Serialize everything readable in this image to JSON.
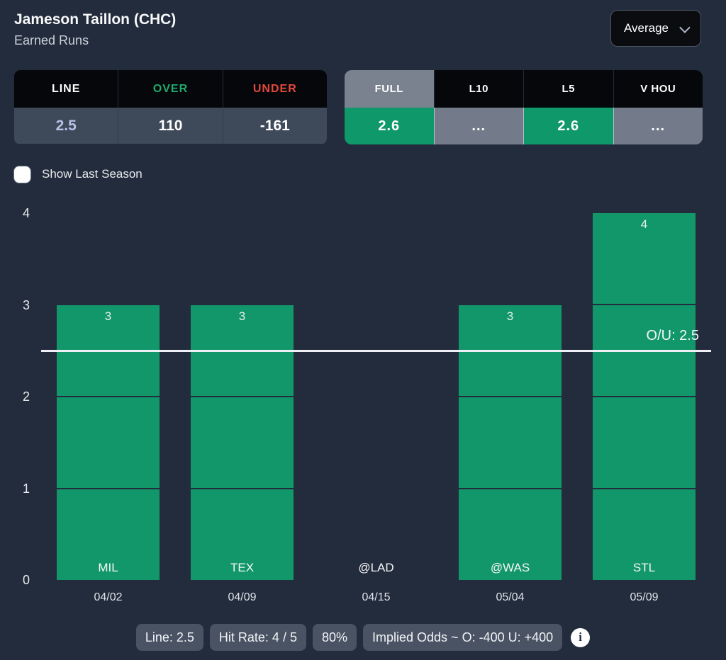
{
  "header": {
    "title": "Jameson Taillon (CHC)",
    "subtitle": "Earned Runs",
    "dropdown": {
      "selected": "Average"
    }
  },
  "odds_table": {
    "columns": [
      {
        "label": "LINE",
        "value": "2.5",
        "label_color": "#FFFFFF",
        "value_color": "#B9C1E8"
      },
      {
        "label": "OVER",
        "value": "110",
        "label_color": "#1FAB6E",
        "value_color": "#FFFFFF"
      },
      {
        "label": "UNDER",
        "value": "-161",
        "label_color": "#E5483D",
        "value_color": "#FFFFFF"
      }
    ]
  },
  "splits_tabs": [
    {
      "label": "FULL",
      "value": "2.6",
      "selected": true,
      "state": "green"
    },
    {
      "label": "L10",
      "value": "...",
      "selected": false,
      "state": "gray"
    },
    {
      "label": "L5",
      "value": "2.6",
      "selected": false,
      "state": "green"
    },
    {
      "label": "V HOU",
      "value": "...",
      "selected": false,
      "state": "gray"
    }
  ],
  "controls": {
    "show_last_season_label": "Show Last Season",
    "show_last_season_checked": false
  },
  "chart_data": {
    "type": "bar",
    "title": "Earned Runs",
    "categories": [
      "MIL",
      "TEX",
      "@LAD",
      "@WAS",
      "STL"
    ],
    "x_sublabels": [
      "04/02",
      "04/09",
      "04/15",
      "05/04",
      "05/09"
    ],
    "values": [
      3,
      3,
      0,
      3,
      4
    ],
    "yticks": [
      0,
      1,
      2,
      3,
      4
    ],
    "ylim": [
      0,
      4
    ],
    "reference_line": {
      "value": 2.5,
      "label": "O/U: 2.5"
    },
    "grid": false,
    "bar_color": "#12976B"
  },
  "footer": {
    "badges": [
      "Line: 2.5",
      "Hit Rate: 4 / 5",
      "80%",
      "Implied Odds ~ O: -400 U: +400"
    ],
    "info_icon": "info-icon"
  },
  "colors": {
    "background": "#232C3C",
    "bar_green": "#12976B",
    "cell_green": "#0F9869",
    "cell_gray": "#737B8A",
    "tab_selected_bg": "#7A8290",
    "over_green": "#1FAB6E",
    "under_red": "#E5483D",
    "line_value_lavender": "#B9C1E8",
    "table_value_bg": "#3E4959",
    "badge_bg": "#4A5363",
    "reference_line": "#EEF0F6"
  }
}
